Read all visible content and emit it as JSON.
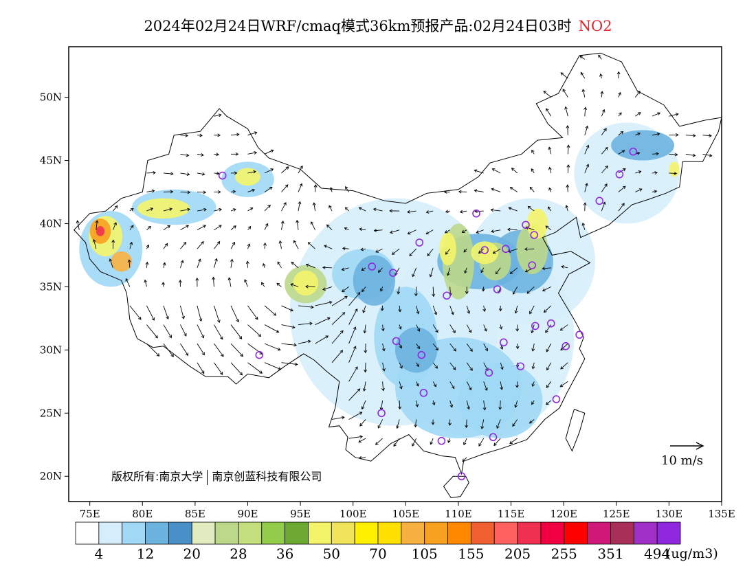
{
  "title": {
    "main": "2024年02月24日WRF/cmaq模式36km预报产品:02月24日03时",
    "species": "NO2",
    "species_color": "#e8232a"
  },
  "map": {
    "lon_ticks": [
      "75E",
      "80E",
      "85E",
      "90E",
      "95E",
      "100E",
      "105E",
      "110E",
      "115E",
      "120E",
      "125E",
      "130E",
      "135E"
    ],
    "lat_ticks": [
      "50N",
      "45N",
      "40N",
      "35N",
      "30N",
      "25N",
      "20N"
    ],
    "lon_range": [
      73,
      135
    ],
    "lat_range": [
      18,
      54
    ],
    "wind_scale_label": "10 m/s",
    "copyright_left": "版权所有:南京大学",
    "copyright_right": "南京创蓝科技有限公司"
  },
  "colorbar": {
    "colors": [
      "#ffffff",
      "#d6eefb",
      "#a0d8f5",
      "#6cb3e0",
      "#4a90c8",
      "#e0ecc0",
      "#bcd88a",
      "#c4e07e",
      "#92cc4a",
      "#6ca832",
      "#f4f46a",
      "#f2e45a",
      "#fff000",
      "#ffe000",
      "#f8b040",
      "#f8a020",
      "#ff8800",
      "#f06030",
      "#ff6060",
      "#f03050",
      "#f00040",
      "#ff0000",
      "#d01878",
      "#a83058",
      "#a030c8",
      "#9028e0"
    ],
    "tick_labels": [
      "4",
      "12",
      "20",
      "28",
      "36",
      "50",
      "70",
      "105",
      "155",
      "205",
      "255",
      "351",
      "494"
    ],
    "unit": "(ug/m3)"
  },
  "icon": {
    "station_marker": "circle-marker-icon",
    "wind_vector": "arrow-icon"
  }
}
